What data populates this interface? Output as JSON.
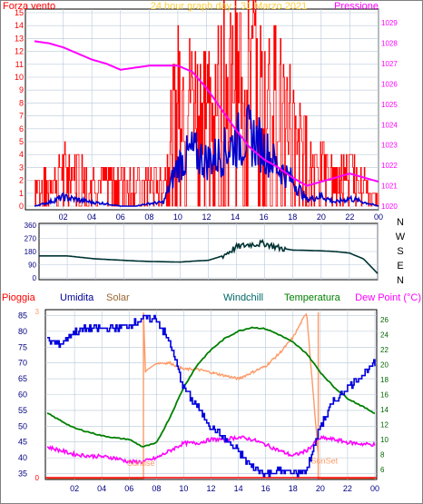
{
  "panels": {
    "wind": {
      "left_label": "Forza vento",
      "title": "24 hour graph day - 31 Marzo 2021",
      "right_label": "Pressione",
      "left_ticks": [
        "0",
        "1",
        "2",
        "3",
        "4",
        "5",
        "6",
        "7",
        "8",
        "9",
        "10",
        "11",
        "12",
        "13",
        "14",
        "15"
      ],
      "right_ticks": [
        "1020",
        "1021",
        "1022",
        "1023",
        "1024",
        "1025",
        "1026",
        "1027",
        "1028",
        "1029"
      ],
      "x_ticks": [
        "02",
        "04",
        "06",
        "08",
        "10",
        "12",
        "14",
        "16",
        "18",
        "20",
        "22",
        "00"
      ]
    },
    "direction": {
      "left_ticks": [
        "0",
        "90",
        "180",
        "270",
        "360"
      ],
      "compass": [
        "N",
        "W",
        "S",
        "E",
        "N"
      ]
    },
    "weather": {
      "legend": [
        "Pioggia",
        "Umidita",
        "Solar",
        "Windchill",
        "Temperatura",
        "Dew Point (°C)"
      ],
      "left_ticks": [
        "35",
        "40",
        "45",
        "50",
        "55",
        "60",
        "65",
        "70",
        "75",
        "80",
        "85"
      ],
      "right_ticks": [
        "6",
        "8",
        "10",
        "12",
        "14",
        "16",
        "18",
        "20",
        "22",
        "24",
        "26"
      ],
      "solar_scale_ticks": [
        "0",
        "3"
      ],
      "x_ticks": [
        "02",
        "04",
        "06",
        "08",
        "10",
        "12",
        "14",
        "16",
        "18",
        "20",
        "22",
        "00"
      ],
      "sun_labels": [
        "Sunrise",
        "SunSet"
      ]
    }
  },
  "colors": {
    "wind_gust": "#ff0000",
    "wind_avg": "#0000cc",
    "pressure": "#ff00ff",
    "direction": "#003333",
    "humidity": "#0000dd",
    "solar": "#ff9966",
    "temperature": "#008000",
    "dewpoint": "#ff00ff",
    "rain": "#ff0000",
    "grid": "#b8c8d8"
  },
  "chart_data": [
    {
      "type": "line",
      "xlabel": "",
      "x_hours": [
        0,
        1,
        2,
        3,
        4,
        5,
        6,
        7,
        8,
        9,
        10,
        11,
        12,
        13,
        14,
        15,
        16,
        17,
        18,
        19,
        20,
        21,
        22,
        23,
        24
      ],
      "xlim": [
        0,
        24
      ],
      "ylim_left": [
        0,
        15
      ],
      "ylim_right": [
        1020,
        1029.5
      ],
      "series": [
        {
          "name": "Forza vento",
          "axis": "left",
          "values": [
            1.8,
            1.5,
            2.5,
            2.5,
            1.8,
            2.0,
            2.2,
            1.5,
            1.8,
            1.5,
            8.0,
            7.5,
            7.5,
            8.5,
            9.0,
            9.5,
            8.5,
            8.0,
            6.0,
            3.5,
            3.0,
            1.8,
            2.5,
            1.5,
            0.5
          ]
        },
        {
          "axis": "left",
          "values": [
            0.0,
            0.3,
            0.7,
            0.5,
            0.3,
            0.2,
            0.0,
            0.0,
            0.2,
            0.3,
            3.2,
            4.2,
            3.5,
            4.0,
            5.0,
            5.5,
            4.5,
            3.0,
            2.0,
            0.5,
            0.8,
            0.3,
            0.6,
            0.3,
            0.0
          ]
        },
        {
          "name": "Pressione",
          "axis": "right",
          "values": [
            1028.1,
            1028.0,
            1027.8,
            1027.5,
            1027.2,
            1027.0,
            1026.7,
            1026.8,
            1026.9,
            1026.9,
            1026.9,
            1026.6,
            1025.8,
            1024.8,
            1023.8,
            1022.9,
            1022.3,
            1021.9,
            1021.4,
            1021.0,
            1021.2,
            1021.4,
            1021.6,
            1021.4,
            1021.2
          ]
        }
      ]
    },
    {
      "type": "line",
      "xlabel": "",
      "x_hours": [
        0,
        1,
        2,
        3,
        4,
        5,
        6,
        7,
        8,
        9,
        10,
        11,
        12,
        13,
        14,
        15,
        16,
        17,
        18,
        19,
        20,
        21,
        22,
        23,
        24
      ],
      "xlim": [
        0,
        24
      ],
      "ylim": [
        0,
        360
      ],
      "series": [
        {
          "values": [
            150,
            150,
            150,
            140,
            130,
            125,
            120,
            115,
            112,
            110,
            108,
            115,
            120,
            150,
            210,
            230,
            235,
            205,
            190,
            188,
            185,
            180,
            170,
            130,
            30
          ]
        }
      ]
    },
    {
      "type": "line",
      "xlabel": "",
      "x_hours": [
        0,
        1,
        2,
        3,
        4,
        5,
        6,
        7,
        8,
        9,
        10,
        11,
        12,
        13,
        14,
        15,
        16,
        17,
        18,
        19,
        20,
        21,
        22,
        23,
        24
      ],
      "xlim": [
        0,
        24
      ],
      "ylim_left": [
        34,
        86
      ],
      "ylim_right": [
        5,
        27
      ],
      "series": [
        {
          "name": "Umidita",
          "axis": "left",
          "values": [
            77,
            76,
            80,
            81,
            81,
            81,
            82,
            84,
            84,
            76,
            62,
            56,
            50,
            46,
            42,
            37,
            35,
            36,
            35,
            36,
            50,
            58,
            62,
            66,
            70
          ]
        },
        {
          "name": "Solar",
          "axis": "left",
          "values": [
            33,
            33,
            33,
            33,
            33,
            33,
            33,
            33,
            70,
            70,
            68,
            68,
            67,
            66,
            65,
            67,
            69,
            73,
            78,
            86,
            33,
            33,
            33,
            33,
            33
          ]
        },
        {
          "name": "Temperatura",
          "axis": "right",
          "values": [
            13.5,
            12.5,
            11.5,
            11.0,
            10.5,
            10.2,
            10.0,
            9.0,
            9.5,
            13.0,
            17.0,
            20.0,
            22.0,
            23.5,
            24.5,
            25.0,
            24.8,
            24.0,
            23.0,
            21.5,
            19.0,
            17.0,
            15.5,
            14.5,
            13.5
          ]
        },
        {
          "name": "Dew Point (°C)",
          "axis": "right",
          "values": [
            9.0,
            8.5,
            8.0,
            7.8,
            7.7,
            7.5,
            7.0,
            7.0,
            7.5,
            8.5,
            9.5,
            9.5,
            10.0,
            10.0,
            10.3,
            10.0,
            9.3,
            8.5,
            7.8,
            8.5,
            10.2,
            10.0,
            9.6,
            9.4,
            9.3
          ]
        },
        {
          "name": "Pioggia",
          "axis": "left",
          "values": [
            0,
            0,
            0,
            0,
            0,
            0,
            0,
            0,
            0,
            0,
            0,
            0,
            0,
            0,
            0,
            0,
            0,
            0,
            0,
            0,
            0,
            0,
            0,
            0,
            0
          ]
        }
      ],
      "sunrise_hour": 7.05,
      "sunset_hour": 19.85
    }
  ]
}
